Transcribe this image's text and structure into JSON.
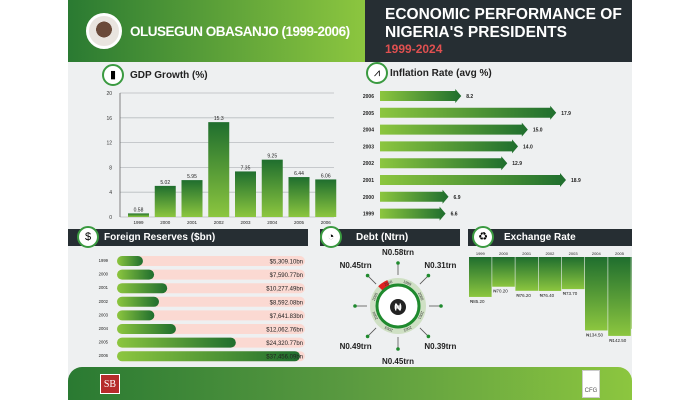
{
  "header": {
    "president": "OLUSEGUN OBASANJO (1999-2006)",
    "title_line1": "ECONOMIC PERFORMANCE OF",
    "title_line2": "NIGERIA'S PRESIDENTS",
    "period": "1999-2024"
  },
  "colors": {
    "bar_green_dark": "#1f6e2e",
    "bar_green_light": "#8cc63f",
    "header_dark": "#262e33",
    "period_red": "#e05050",
    "reserve_track": "#fbd9d2",
    "debt_highlight": "#e02020"
  },
  "footer": {
    "left_logo": "SB",
    "right_logo": "CFG"
  },
  "chart_data": [
    {
      "type": "bar",
      "title": "GDP Growth (%)",
      "icon": "gdp-icon",
      "categories": [
        "1999",
        "2000",
        "2001",
        "2002",
        "2003",
        "2004",
        "2005",
        "2006"
      ],
      "values": [
        0.58,
        5.02,
        5.95,
        15.3,
        7.35,
        9.25,
        6.44,
        6.06
      ],
      "labels": [
        "0.58",
        "5.02",
        "5.95",
        "15.3",
        "7.35",
        "9.25",
        "6.44",
        "6.06"
      ],
      "yticks": [
        "0",
        "4",
        "8",
        "12",
        "16",
        "20"
      ],
      "ylim": [
        0,
        20
      ],
      "grid": true
    },
    {
      "type": "bar",
      "orientation": "horizontal",
      "title": "Inflation Rate (avg %)",
      "icon": "inflation-icon",
      "categories": [
        "2006",
        "2005",
        "2004",
        "2003",
        "2002",
        "2001",
        "2000",
        "1999"
      ],
      "values": [
        8.2,
        17.9,
        15.0,
        14.0,
        12.9,
        18.9,
        6.9,
        6.6
      ],
      "labels": [
        "8.2",
        "17.9",
        "15.0",
        "14.0",
        "12.9",
        "18.9",
        "6.9",
        "6.6"
      ]
    },
    {
      "type": "bar",
      "orientation": "horizontal",
      "title": "Foreign Reserves  ($bn)",
      "icon": "reserves-icon",
      "categories": [
        "1999",
        "2000",
        "2001",
        "2002",
        "2003",
        "2004",
        "2005",
        "2006"
      ],
      "values": [
        5309.1,
        7590.77,
        10277.49,
        8592.08,
        7641.83,
        12062.76,
        24320.77,
        37456.09
      ],
      "labels": [
        "$5,309.10bn",
        "$7,590.77bn",
        "$10,277.49bn",
        "$8,592.08bn",
        "$7,641.83bn",
        "$12,062.76bn",
        "$24,320.77bn",
        "$37,456.09bn"
      ]
    },
    {
      "type": "radial",
      "title": "Debt (Ntrn)",
      "icon": "debt-icon",
      "center_symbol": "₦",
      "ring_years": [
        "1999",
        "2000",
        "2001",
        "2002",
        "2003",
        "2004",
        "2005",
        "2006"
      ],
      "labels": [
        "N0.58trn",
        "N0.31trn",
        "",
        "N0.39trn",
        "N0.45trn",
        "N0.49trn",
        "",
        "N0.45trn"
      ]
    },
    {
      "type": "bar",
      "orientation": "downward",
      "title": "Exchange Rate",
      "icon": "exchange-icon",
      "categories": [
        "1999",
        "2000",
        "2001",
        "2002",
        "2003",
        "2004",
        "2005",
        "2006"
      ],
      "values": [
        85.2,
        70.2,
        76.2,
        76.4,
        73.7,
        134.5,
        142.5,
        132.1
      ],
      "labels": [
        "₦85.20",
        "₦70.20",
        "₦76.20",
        "₦76.40",
        "₦73.70",
        "₦134.50",
        "₦142.50",
        "₦132.10"
      ]
    }
  ]
}
